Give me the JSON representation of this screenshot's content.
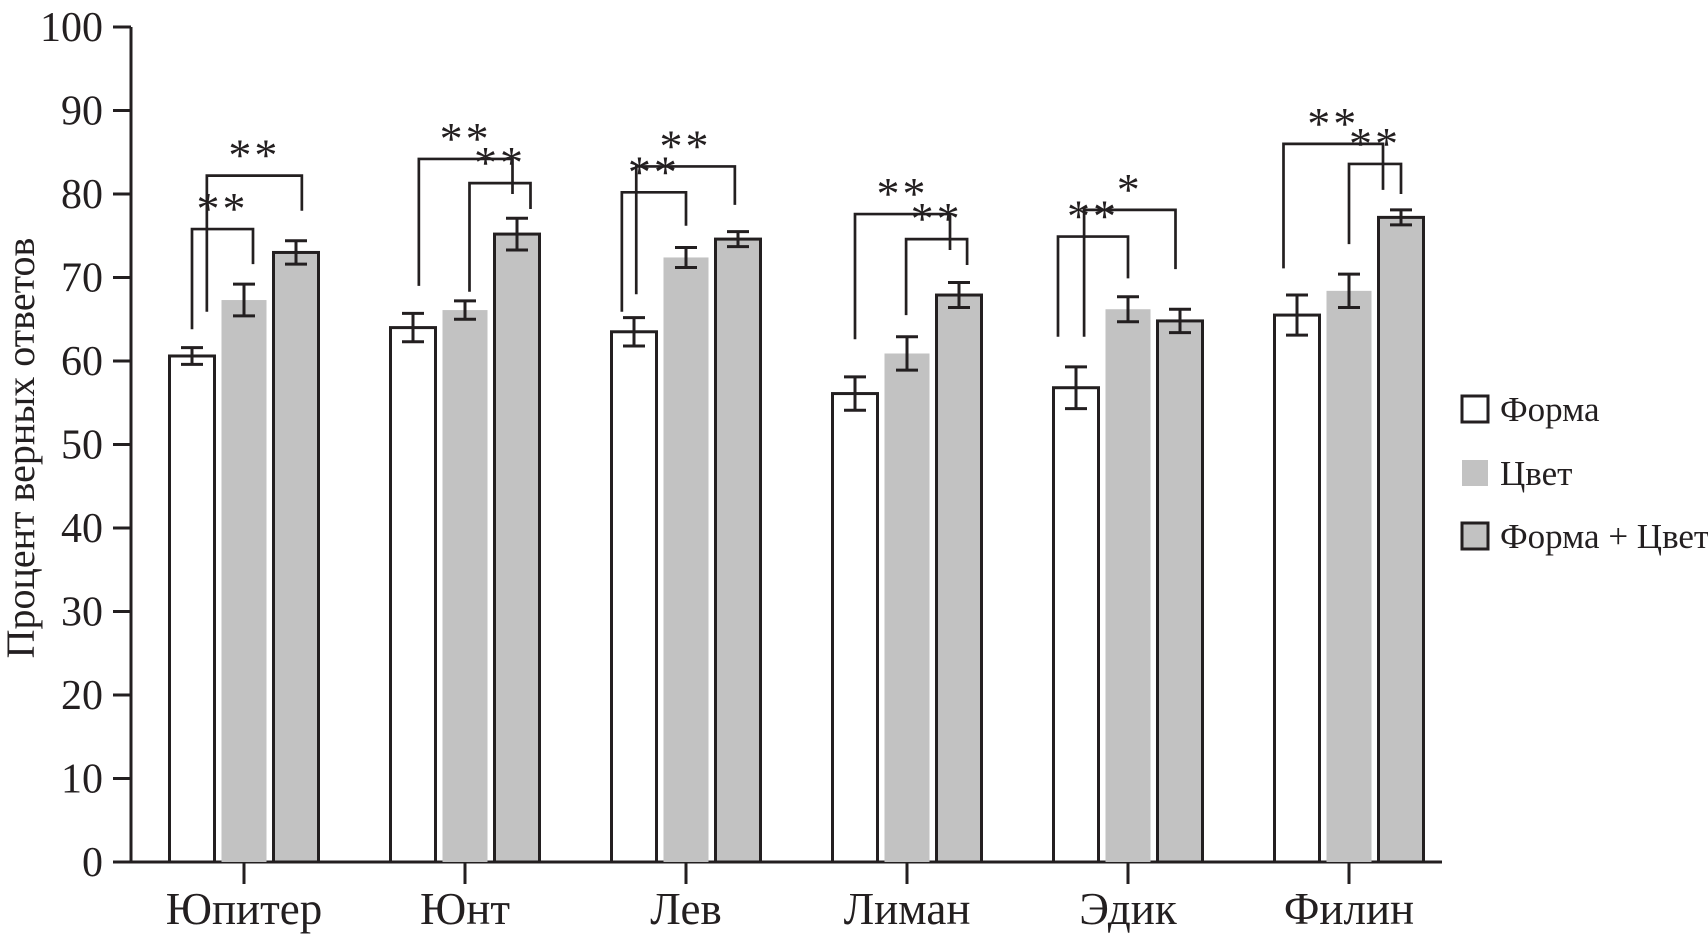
{
  "colors": {
    "ink": "#231f20",
    "bar_gray": "#c2c2c2",
    "background": "#ffffff"
  },
  "chart_data": {
    "type": "bar",
    "title": "",
    "xlabel": "",
    "ylabel": "Процент верных ответов",
    "ylim": [
      0,
      100
    ],
    "yticks": [
      0,
      10,
      20,
      30,
      40,
      50,
      60,
      70,
      80,
      90,
      100
    ],
    "grid": false,
    "legend_position": "right",
    "categories": [
      "Юпитер",
      "Юнт",
      "Лев",
      "Лиман",
      "Эдик",
      "Филин"
    ],
    "series": [
      {
        "name": "Форма",
        "swatch": "white-outlined",
        "values": [
          60.6,
          64.0,
          63.5,
          56.1,
          56.8,
          65.5
        ],
        "errors": [
          1.0,
          1.7,
          1.7,
          2.0,
          2.5,
          2.4
        ]
      },
      {
        "name": "Цвет",
        "swatch": "gray-plain",
        "values": [
          67.3,
          66.1,
          72.4,
          60.9,
          66.2,
          68.4
        ],
        "errors": [
          1.9,
          1.1,
          1.2,
          2.0,
          1.5,
          2.0
        ]
      },
      {
        "name": "Форма + Цвет",
        "swatch": "gray-outlined",
        "values": [
          73.0,
          75.2,
          74.6,
          67.9,
          64.8,
          77.2
        ],
        "errors": [
          1.4,
          1.9,
          0.9,
          1.5,
          1.4,
          0.9
        ]
      }
    ],
    "significance_brackets": [
      {
        "group": 0,
        "a": 0,
        "b": 1,
        "top": 75.8,
        "a_end": 63.8,
        "b_end": 71.6,
        "a_dx": 0.0,
        "b_dx": 0.2,
        "label": "**"
      },
      {
        "group": 0,
        "a": 0,
        "b": 2,
        "top": 82.2,
        "a_end": 65.9,
        "b_end": 78.0,
        "a_dx": 0.33,
        "b_dx": 0.13,
        "label": "**"
      },
      {
        "group": 1,
        "a": 0,
        "b": 2,
        "top": 84.2,
        "a_end": 69.0,
        "b_end": 80.0,
        "a_dx": 0.13,
        "b_dx": -0.1,
        "label": "**"
      },
      {
        "group": 1,
        "a": 1,
        "b": 2,
        "top": 81.3,
        "a_end": 68.3,
        "b_end": 78.2,
        "a_dx": 0.1,
        "b_dx": 0.3,
        "label": "**"
      },
      {
        "group": 2,
        "a": 0,
        "b": 1,
        "top": 80.2,
        "a_end": 65.9,
        "b_end": 76.2,
        "a_dx": -0.27,
        "b_dx": 0.0,
        "label": "**"
      },
      {
        "group": 2,
        "a": 0,
        "b": 2,
        "top": 83.3,
        "a_end": 68.0,
        "b_end": 78.7,
        "a_dx": 0.05,
        "b_dx": -0.07,
        "label": "**"
      },
      {
        "group": 3,
        "a": 0,
        "b": 2,
        "top": 77.6,
        "a_end": 62.6,
        "b_end": 73.3,
        "a_dx": 0.0,
        "b_dx": -0.2,
        "label": "**"
      },
      {
        "group": 3,
        "a": 1,
        "b": 2,
        "top": 74.6,
        "a_end": 65.5,
        "b_end": 71.5,
        "a_dx": -0.02,
        "b_dx": 0.18,
        "label": "**"
      },
      {
        "group": 4,
        "a": 0,
        "b": 2,
        "top": 78.1,
        "a_end": 62.9,
        "b_end": 71.0,
        "a_dx": 0.18,
        "b_dx": -0.1,
        "label": "*"
      },
      {
        "group": 4,
        "a": 0,
        "b": 1,
        "top": 74.9,
        "a_end": 62.9,
        "b_end": 69.9,
        "a_dx": -0.4,
        "b_dx": 0.0,
        "label": "**"
      },
      {
        "group": 5,
        "a": 0,
        "b": 2,
        "top": 86.0,
        "a_end": 71.1,
        "b_end": 80.5,
        "a_dx": -0.3,
        "b_dx": -0.4,
        "label": "**"
      },
      {
        "group": 5,
        "a": 1,
        "b": 2,
        "top": 83.6,
        "a_end": 74.0,
        "b_end": 80.0,
        "a_dx": 0.0,
        "b_dx": 0.0,
        "label": "**"
      }
    ]
  },
  "legend": {
    "items": [
      {
        "label": "Форма"
      },
      {
        "label": "Цвет"
      },
      {
        "label": "Форма + Цвет"
      }
    ]
  }
}
